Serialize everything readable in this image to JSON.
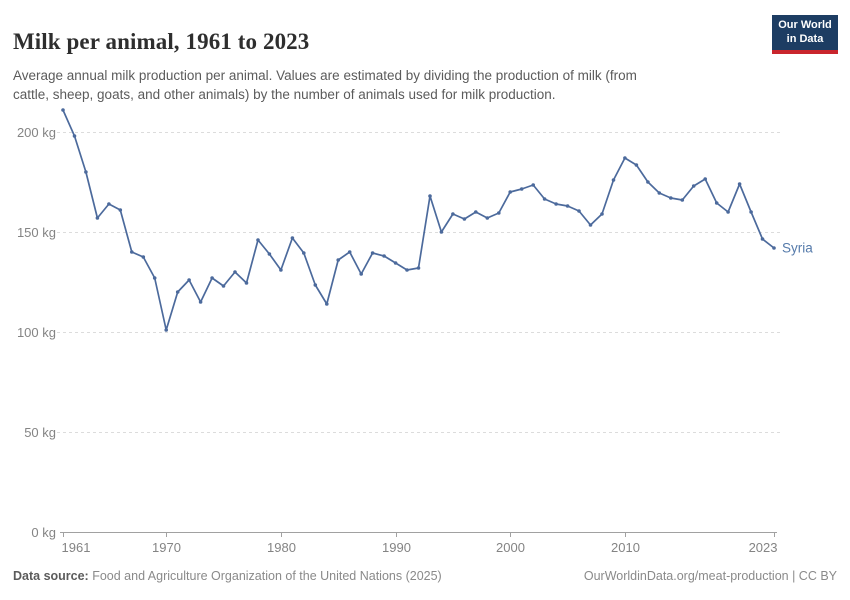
{
  "header": {
    "title": "Milk per animal, 1961 to 2023",
    "subtitle_lines": [
      "Average annual milk production per animal. Values are estimated by dividing the production of milk (from",
      "cattle, sheep, goats, and other animals) by the number of animals used for milk production."
    ],
    "logo": {
      "line1": "Our World",
      "line2": "in Data",
      "bg_color": "#1d3d63",
      "accent_color": "#c9252d"
    }
  },
  "footer": {
    "source_label": "Data source:",
    "source_text": " Food and Agriculture Organization of the United Nations (2025)",
    "credit_text": "OurWorldinData.org/meat-production | CC BY"
  },
  "chart_data": {
    "type": "line",
    "title": "Milk per animal, 1961 to 2023",
    "entity": "Syria",
    "unit": "kg",
    "line_color": "#4c6a9c",
    "label_color": "#567bab",
    "grid": true,
    "grid_color": "#dcdcdc",
    "axis_color": "#a1a1a1",
    "tick_label_color": "#848484",
    "ylim": [
      0,
      200
    ],
    "yticks": [
      0,
      50,
      100,
      150,
      200
    ],
    "ytick_suffix": " kg",
    "xticks": [
      1961,
      1970,
      1980,
      1990,
      2000,
      2010,
      2023
    ],
    "legend_position": "end-of-line-label",
    "years": [
      1961,
      1962,
      1963,
      1964,
      1965,
      1966,
      1967,
      1968,
      1969,
      1970,
      1971,
      1972,
      1973,
      1974,
      1975,
      1976,
      1977,
      1978,
      1979,
      1980,
      1981,
      1982,
      1983,
      1984,
      1985,
      1986,
      1987,
      1988,
      1989,
      1990,
      1991,
      1992,
      1993,
      1994,
      1995,
      1996,
      1997,
      1998,
      1999,
      2000,
      2001,
      2002,
      2003,
      2004,
      2005,
      2006,
      2007,
      2008,
      2009,
      2010,
      2011,
      2012,
      2013,
      2014,
      2015,
      2016,
      2017,
      2018,
      2019,
      2020,
      2021,
      2022,
      2023
    ],
    "series": [
      {
        "name": "Syria",
        "values": [
          211,
          198,
          180,
          157,
          164,
          161,
          140,
          137.5,
          127,
          101,
          120,
          126,
          115,
          127,
          123,
          130,
          124.5,
          146,
          139,
          131,
          147,
          139.5,
          123.5,
          114,
          136,
          140,
          129,
          139.5,
          138,
          134.5,
          131,
          132,
          168,
          150,
          159,
          156.5,
          160,
          157,
          159.5,
          170,
          171.5,
          173.5,
          166.5,
          164,
          163,
          160.5,
          153.5,
          159,
          176,
          187,
          183.5,
          175,
          169.5,
          167,
          166,
          173,
          176.5,
          164.5,
          160,
          174,
          160,
          146.5,
          142
        ]
      }
    ]
  }
}
